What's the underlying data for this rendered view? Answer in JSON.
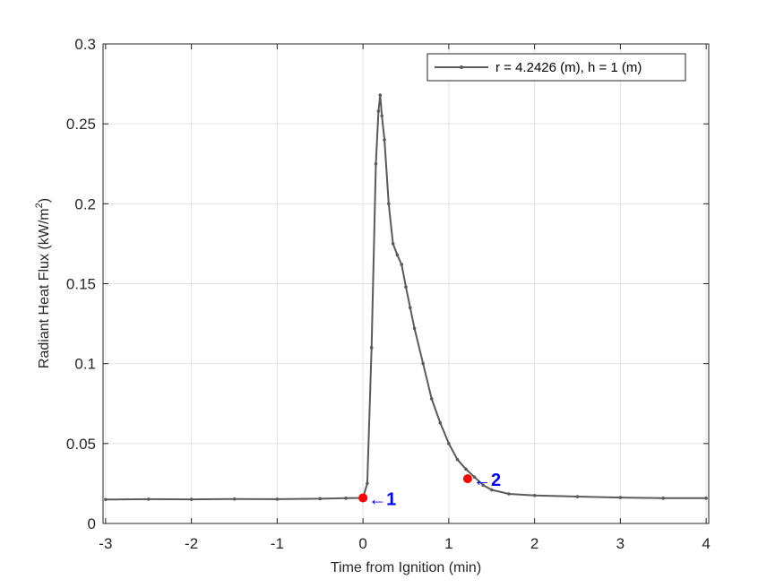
{
  "chart_data": {
    "type": "line",
    "xlabel": "Time from Ignition (min)",
    "ylabel_main": "Radiant Heat Flux (kW/m",
    "ylabel_sup": "2",
    "ylabel_close": ")",
    "xlim": [
      -3.03,
      4.03
    ],
    "ylim": [
      0,
      0.3
    ],
    "x_ticks": [
      -3,
      -2,
      -1,
      0,
      1,
      2,
      3,
      4
    ],
    "x_tick_labels": [
      "-3",
      "-2",
      "-1",
      "0",
      "1",
      "2",
      "3",
      "4"
    ],
    "y_ticks": [
      0,
      0.05,
      0.1,
      0.15,
      0.2,
      0.25,
      0.3
    ],
    "y_tick_labels": [
      "0",
      "0.05",
      "0.1",
      "0.15",
      "0.2",
      "0.25",
      "0.3"
    ],
    "grid": true,
    "legend_position": "top-right",
    "series": [
      {
        "name": "r = 4.2426 (m), h = 1 (m)",
        "color": "#5a5a5a",
        "x": [
          -3.0,
          -2.5,
          -2.0,
          -1.5,
          -1.0,
          -0.5,
          -0.2,
          0.0,
          0.05,
          0.1,
          0.15,
          0.18,
          0.2,
          0.22,
          0.25,
          0.3,
          0.35,
          0.4,
          0.45,
          0.5,
          0.55,
          0.6,
          0.7,
          0.8,
          0.9,
          1.0,
          1.1,
          1.2,
          1.3,
          1.4,
          1.5,
          1.7,
          2.0,
          2.5,
          3.0,
          3.5,
          4.0
        ],
        "y": [
          0.015,
          0.0152,
          0.0151,
          0.0153,
          0.0152,
          0.0155,
          0.0158,
          0.016,
          0.025,
          0.11,
          0.225,
          0.258,
          0.268,
          0.255,
          0.24,
          0.2,
          0.175,
          0.168,
          0.162,
          0.148,
          0.135,
          0.122,
          0.1,
          0.078,
          0.063,
          0.05,
          0.04,
          0.034,
          0.029,
          0.024,
          0.021,
          0.0185,
          0.0175,
          0.0168,
          0.0162,
          0.0158,
          0.0158
        ]
      }
    ],
    "annotations": [
      {
        "x": 0.0,
        "y": 0.016,
        "label": "←1",
        "marker_color": "#ff0000",
        "text_color": "#0000ff"
      },
      {
        "x": 1.22,
        "y": 0.028,
        "label": "←2",
        "marker_color": "#ff0000",
        "text_color": "#0000ff"
      }
    ]
  }
}
